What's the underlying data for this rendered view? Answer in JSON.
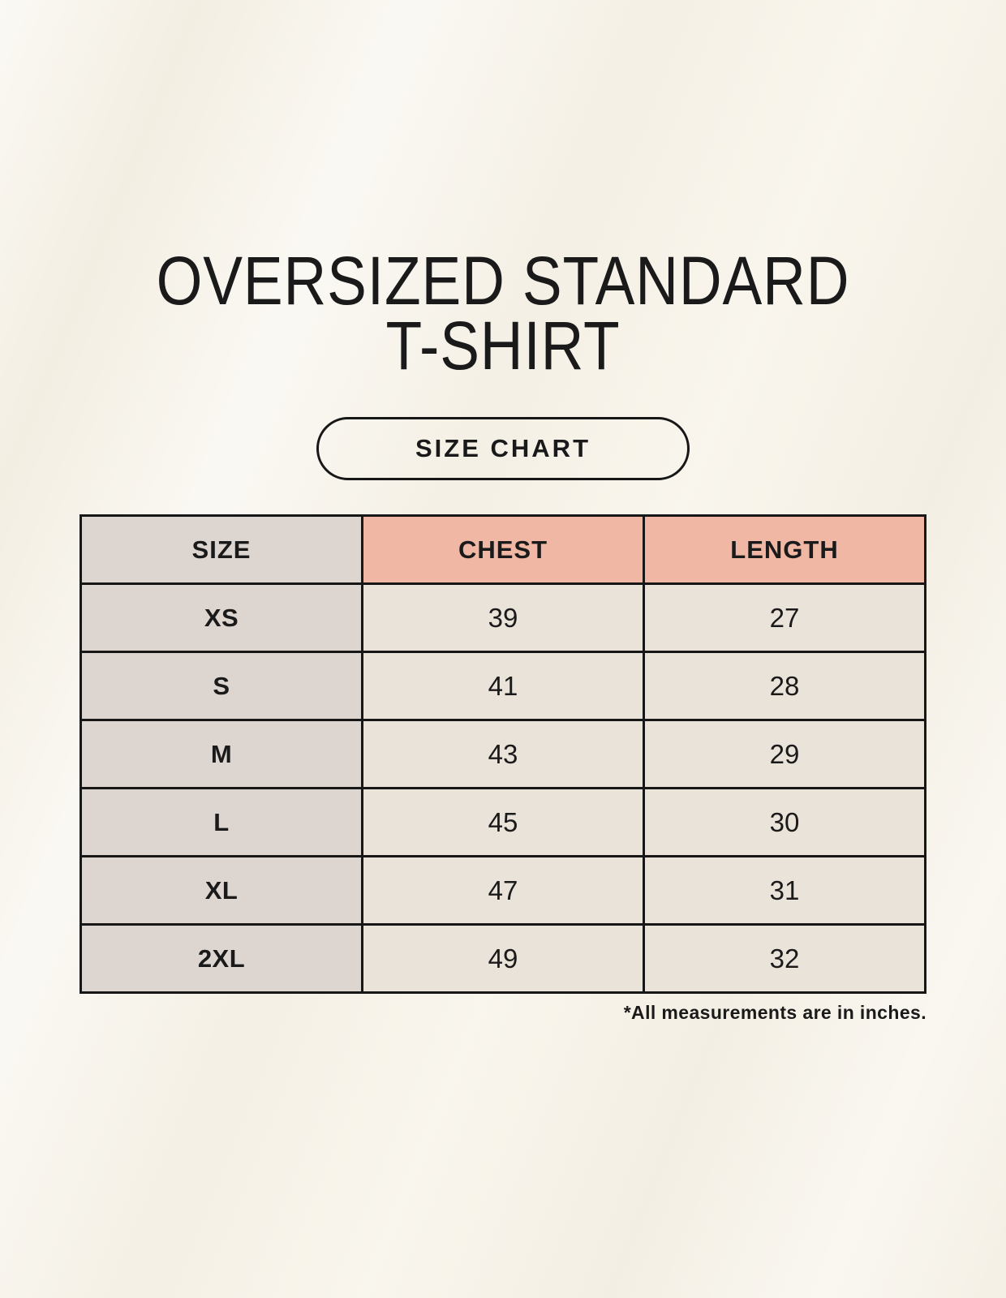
{
  "page": {
    "title_lines": [
      "OVERSIZED STANDARD",
      "T-SHIRT"
    ]
  },
  "size_chart_button": {
    "label": "SIZE CHART"
  },
  "chart_data": {
    "type": "table",
    "title": "OVERSIZED STANDARD T-SHIRT",
    "subtitle": "SIZE CHART",
    "columns": [
      "SIZE",
      "CHEST",
      "LENGTH"
    ],
    "rows": [
      [
        "XS",
        39,
        27
      ],
      [
        "S",
        41,
        28
      ],
      [
        "M",
        43,
        29
      ],
      [
        "L",
        45,
        30
      ],
      [
        "XL",
        47,
        31
      ],
      [
        "2XL",
        49,
        32
      ]
    ],
    "note": "*All measurements are in inches.",
    "units": "inches"
  },
  "colors": {
    "page_background": "#f6f2e8",
    "table_border": "#171717",
    "size_column_bg": "#dcd5d0",
    "measure_header_bg": "#f0b7a5",
    "value_cell_bg": "#eae3d9",
    "text": "#1a1a1a"
  }
}
